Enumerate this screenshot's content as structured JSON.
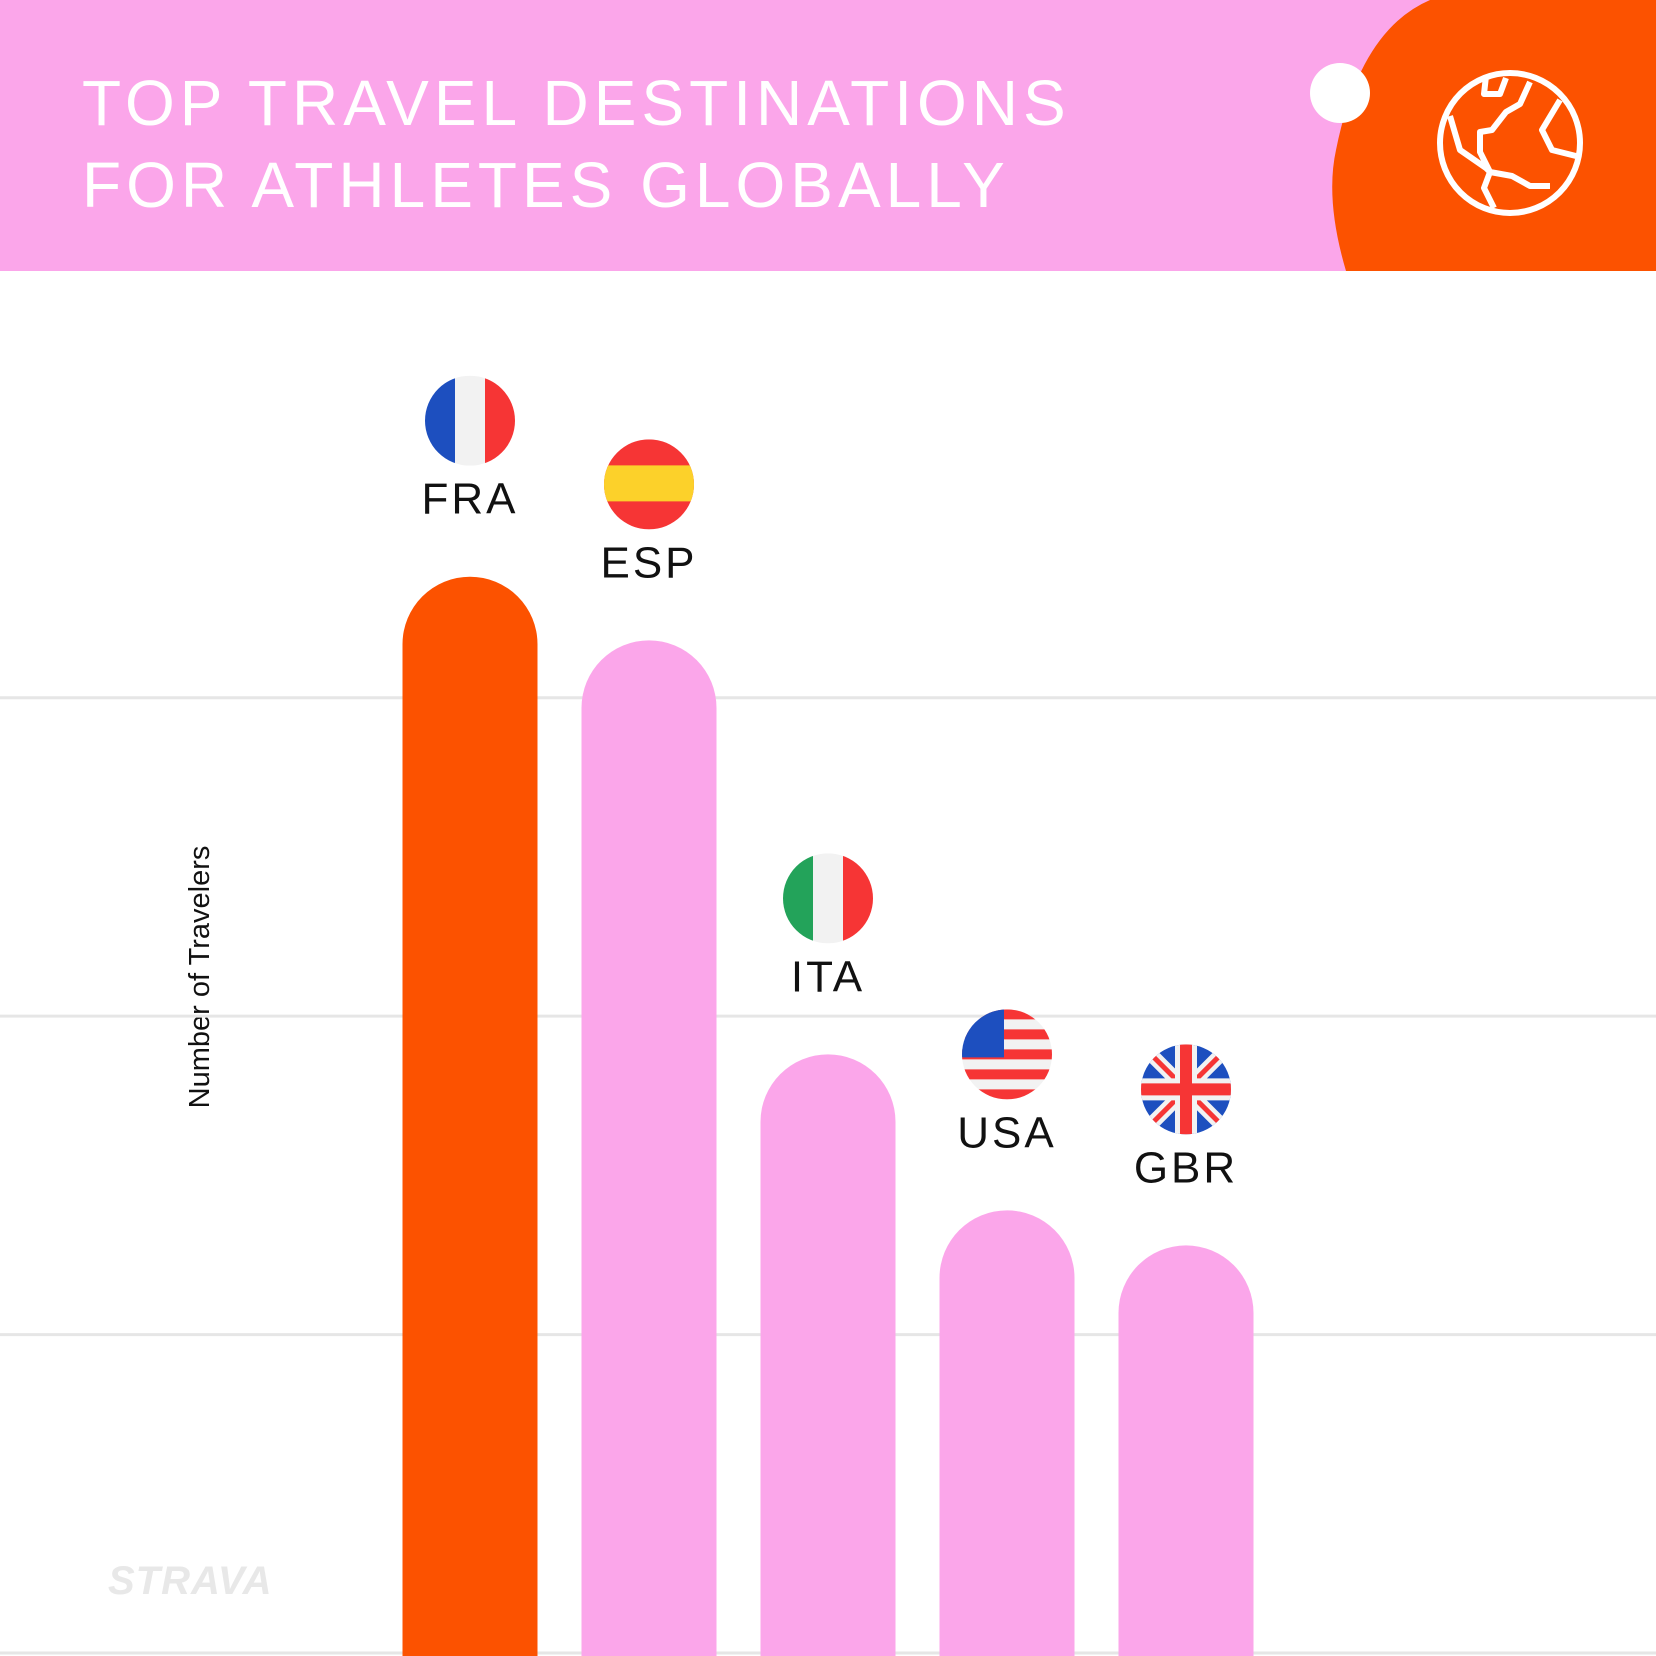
{
  "chart_data": {
    "type": "bar",
    "title": [
      "TOP TRAVEL DESTINATIONS",
      "FOR ATHLETES GLOBALLY"
    ],
    "y_label": "Number of Travelers",
    "categories": [
      "FRA",
      "ESP",
      "ITA",
      "USA",
      "GBR"
    ],
    "values": [
      3.38,
      3.18,
      1.88,
      1.39,
      1.28
    ],
    "colors": [
      "#fc5200",
      "#fba6ea",
      "#fba6ea",
      "#fba6ea",
      "#fba6ea"
    ],
    "ylim": [
      0,
      4.34
    ],
    "yticks": [
      0,
      1,
      2,
      3
    ],
    "grid": true,
    "logo": "STRAVA"
  }
}
